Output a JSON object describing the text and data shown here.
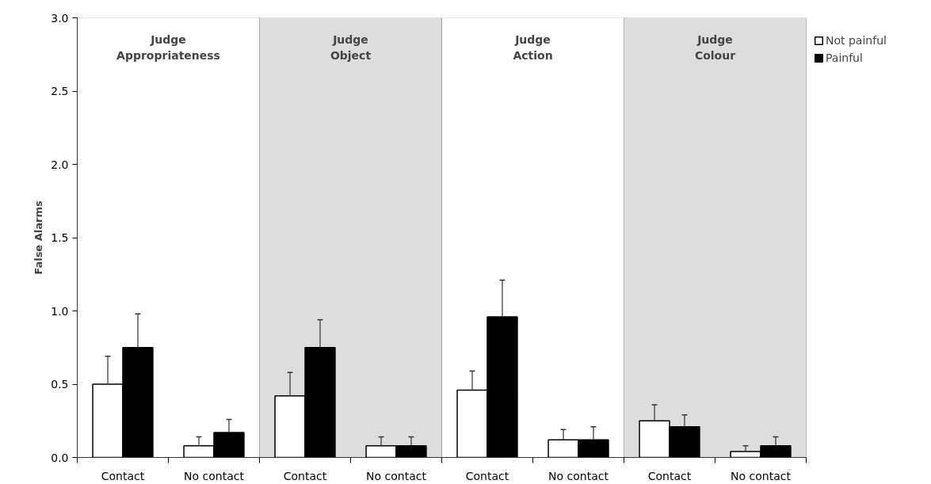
{
  "chart_data": {
    "type": "bar",
    "ylabel": "False Alarms",
    "categories": [
      "Contact",
      "No contact",
      "Contact",
      "No contact",
      "Contact",
      "No contact",
      "Contact",
      "No contact"
    ],
    "series": [
      {
        "name": "Not painful",
        "color": "#ffffff",
        "values": [
          0.5,
          0.08,
          0.42,
          0.08,
          0.46,
          0.12,
          0.25,
          0.04
        ],
        "errors": [
          [
            0.5,
            0.69
          ],
          [
            0.08,
            0.14
          ],
          [
            0.42,
            0.58
          ],
          [
            0.08,
            0.14
          ],
          [
            0.46,
            0.59
          ],
          [
            0.12,
            0.19
          ],
          [
            0.25,
            0.36
          ],
          [
            0.04,
            0.08
          ]
        ]
      },
      {
        "name": "Painful",
        "color": "#000000",
        "values": [
          0.75,
          0.17,
          0.75,
          0.08,
          0.96,
          0.12,
          0.21,
          0.08
        ],
        "errors": [
          [
            0.75,
            0.98
          ],
          [
            0.17,
            0.26
          ],
          [
            0.75,
            0.94
          ],
          [
            0.08,
            0.14
          ],
          [
            0.96,
            1.21
          ],
          [
            0.12,
            0.21
          ],
          [
            0.21,
            0.29
          ],
          [
            0.08,
            0.14
          ]
        ]
      }
    ],
    "annotations": [
      "Judge\nAppropriateness",
      "Judge\nObject",
      "Judge\nAction",
      "Judge\nColour"
    ],
    "ylim": [
      0,
      3.0
    ],
    "yticks": [
      {
        "value": 0,
        "label": "0.0"
      },
      0.5,
      {
        "value": 1,
        "label": "1.0"
      },
      1.5,
      {
        "value": 2,
        "label": "2.0"
      },
      2.5,
      {
        "value": 3,
        "label": "3.0"
      }
    ],
    "grid": false,
    "legend": "top right"
  }
}
